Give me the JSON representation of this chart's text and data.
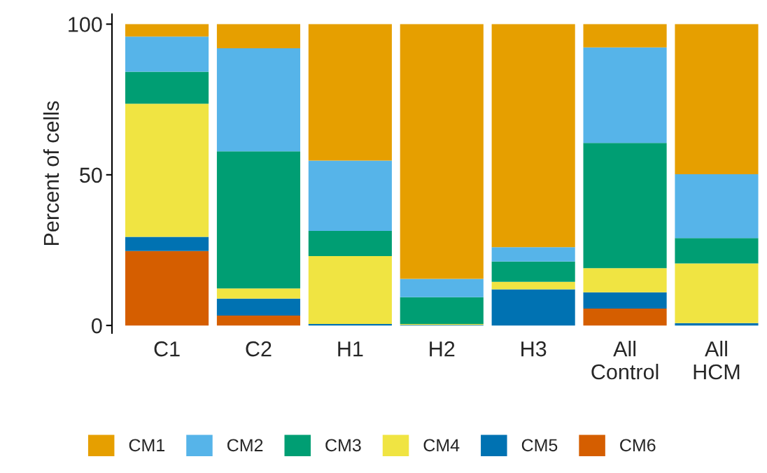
{
  "chart_data": {
    "type": "bar",
    "stacked": true,
    "ylabel": "Percent of cells",
    "categories": [
      "C1",
      "C2",
      "H1",
      "H2",
      "H3",
      "All Control",
      "All HCM"
    ],
    "series": [
      {
        "name": "CM6",
        "color": "#d55e00",
        "values": [
          24.7,
          3.3,
          0,
          0,
          0,
          5.6,
          0
        ]
      },
      {
        "name": "CM5",
        "color": "#0072b2",
        "values": [
          4.7,
          5.6,
          0.5,
          0.2,
          12.0,
          5.4,
          0.8
        ]
      },
      {
        "name": "CM4",
        "color": "#f0e442",
        "values": [
          44.2,
          3.4,
          22.5,
          0.3,
          2.5,
          8.0,
          19.8
        ]
      },
      {
        "name": "CM3",
        "color": "#009e73",
        "values": [
          10.6,
          45.5,
          8.4,
          8.9,
          6.7,
          41.6,
          8.4
        ]
      },
      {
        "name": "CM2",
        "color": "#56b4e9",
        "values": [
          11.7,
          34.2,
          23.3,
          6.1,
          4.8,
          31.7,
          21.2
        ]
      },
      {
        "name": "CM1",
        "color": "#e69f00",
        "values": [
          4.1,
          8.0,
          45.3,
          84.5,
          74.0,
          7.7,
          49.8
        ]
      }
    ],
    "ylim": [
      -2.5,
      103.3
    ],
    "yticks": [
      0,
      50,
      100
    ],
    "grid": false,
    "legend": "bottom"
  }
}
